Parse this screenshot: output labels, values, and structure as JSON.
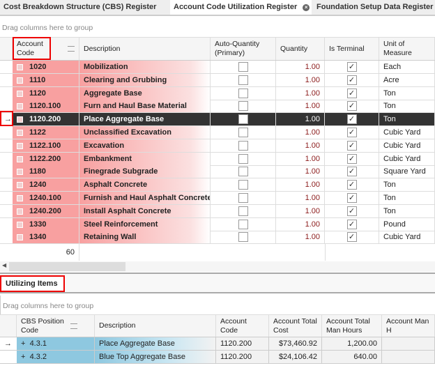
{
  "tabs": [
    {
      "label": "Cost Breakdown Structure (CBS) Register"
    },
    {
      "label": "Account Code Utilization Register",
      "active": true
    },
    {
      "label": "Foundation Setup Data Register"
    }
  ],
  "top_grid": {
    "group_hint": "Drag columns here to group",
    "columns": [
      "Account Code",
      "Description",
      "Auto-Quantity (Primary)",
      "Quantity",
      "Is Terminal",
      "Unit of Measure"
    ],
    "rows": [
      {
        "code": "1020",
        "description": "Mobilization",
        "auto": false,
        "quantity": "1.00",
        "terminal": true,
        "uom": "Each"
      },
      {
        "code": "1110",
        "description": "Clearing and Grubbing",
        "auto": false,
        "quantity": "1.00",
        "terminal": true,
        "uom": "Acre"
      },
      {
        "code": "1120",
        "description": "Aggregate Base",
        "auto": false,
        "quantity": "1.00",
        "terminal": true,
        "uom": "Ton"
      },
      {
        "code": "1120.100",
        "description": "Furn and Haul Base Material",
        "auto": false,
        "quantity": "1.00",
        "terminal": true,
        "uom": "Ton"
      },
      {
        "code": "1120.200",
        "description": "Place Aggregate Base",
        "auto": false,
        "quantity": "1.00",
        "terminal": true,
        "uom": "Ton",
        "selected": true
      },
      {
        "code": "1122",
        "description": "Unclassified Excavation",
        "auto": false,
        "quantity": "1.00",
        "terminal": true,
        "uom": "Cubic Yard"
      },
      {
        "code": "1122.100",
        "description": "Excavation",
        "auto": false,
        "quantity": "1.00",
        "terminal": true,
        "uom": "Cubic Yard"
      },
      {
        "code": "1122.200",
        "description": "Embankment",
        "auto": false,
        "quantity": "1.00",
        "terminal": true,
        "uom": "Cubic Yard"
      },
      {
        "code": "1180",
        "description": "Finegrade Subgrade",
        "auto": false,
        "quantity": "1.00",
        "terminal": true,
        "uom": "Square Yard"
      },
      {
        "code": "1240",
        "description": "Asphalt Concrete",
        "auto": false,
        "quantity": "1.00",
        "terminal": true,
        "uom": "Ton"
      },
      {
        "code": "1240.100",
        "description": "Furnish and Haul Asphalt Concrete",
        "auto": false,
        "quantity": "1.00",
        "terminal": true,
        "uom": "Ton"
      },
      {
        "code": "1240.200",
        "description": "Install Asphalt Concrete",
        "auto": false,
        "quantity": "1.00",
        "terminal": true,
        "uom": "Ton"
      },
      {
        "code": "1330",
        "description": "Steel Reinforcement",
        "auto": false,
        "quantity": "1.00",
        "terminal": true,
        "uom": "Pound"
      },
      {
        "code": "1340",
        "description": "Retaining Wall",
        "auto": false,
        "quantity": "1.00",
        "terminal": true,
        "uom": "Cubic Yard"
      }
    ],
    "footer_count": "60"
  },
  "bottom": {
    "tab_label": "Utilizing Items",
    "group_hint": "Drag columns here to group",
    "columns": [
      "CBS Position Code",
      "Description",
      "Account Code",
      "Account Total Cost",
      "Account Total Man Hours",
      "Account Man H"
    ],
    "rows": [
      {
        "cbs": "4.3.1",
        "description": "Place Aggregate Base",
        "code": "1120.200",
        "cost": "$73,460.92",
        "hours": "1,200.00",
        "current": true
      },
      {
        "cbs": "4.3.2",
        "description": "Blue Top Aggregate Base",
        "code": "1120.200",
        "cost": "$24,106.42",
        "hours": "640.00"
      }
    ]
  },
  "colors": {
    "highlight_red": "#f8a0a0",
    "selected_row": "#333333",
    "cbs_blue": "#8ec8e0",
    "annotation_box": "#ee0000"
  }
}
